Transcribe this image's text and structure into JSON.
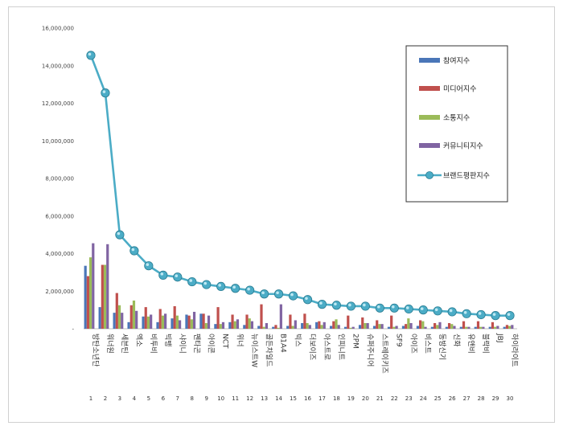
{
  "chart_data": {
    "type": "bar",
    "title": "",
    "xlabel": "",
    "ylabel": "",
    "ylim": [
      0,
      16000000
    ],
    "yticks": [
      "-",
      "2,000,000",
      "4,000,000",
      "6,000,000",
      "8,000,000",
      "10,000,000",
      "12,000,000",
      "14,000,000",
      "16,000,000"
    ],
    "grid": false,
    "legend": "top-right",
    "categories": [
      "방탄소년단",
      "워너원",
      "세븐틴",
      "엑소",
      "비투비",
      "빅뱅",
      "샤이니",
      "펜타곤",
      "아이콘",
      "NCT",
      "위너",
      "뉴이스트W",
      "골든차일드",
      "B1A4",
      "빅스",
      "더보이즈",
      "아스트로",
      "인피니트",
      "2PM",
      "슈퍼주니어",
      "스트레이키즈",
      "SF9",
      "아이즈",
      "비스트",
      "동방신기",
      "신화",
      "유앤비",
      "블락비",
      "JBJ",
      "하이라이트"
    ],
    "ranks": [
      "1",
      "2",
      "3",
      "4",
      "5",
      "6",
      "7",
      "8",
      "9",
      "10",
      "11",
      "12",
      "13",
      "14",
      "15",
      "16",
      "17",
      "18",
      "19",
      "20",
      "21",
      "22",
      "23",
      "24",
      "25",
      "26",
      "27",
      "28",
      "29",
      "30"
    ],
    "series": [
      {
        "name": "참여지수",
        "kind": "bar",
        "color": "#4a76b8",
        "values": [
          3350000,
          1150000,
          850000,
          350000,
          650000,
          350000,
          550000,
          750000,
          800000,
          250000,
          350000,
          200000,
          150000,
          100000,
          150000,
          300000,
          350000,
          150000,
          100000,
          200000,
          150000,
          100000,
          150000,
          150000,
          100000,
          100000,
          100000,
          100000,
          100000,
          100000
        ]
      },
      {
        "name": "미디어지수",
        "kind": "bar",
        "color": "#c0504d",
        "values": [
          2800000,
          3400000,
          1900000,
          1250000,
          1150000,
          1050000,
          1200000,
          700000,
          800000,
          1150000,
          750000,
          750000,
          1300000,
          200000,
          750000,
          800000,
          400000,
          400000,
          700000,
          600000,
          450000,
          700000,
          250000,
          450000,
          300000,
          300000,
          400000,
          400000,
          350000,
          200000
        ]
      },
      {
        "name": "소통지수",
        "kind": "bar",
        "color": "#9bbb59",
        "values": [
          3800000,
          3400000,
          1250000,
          1500000,
          650000,
          700000,
          700000,
          500000,
          300000,
          250000,
          400000,
          550000,
          100000,
          50000,
          150000,
          300000,
          200000,
          500000,
          50000,
          300000,
          250000,
          100000,
          550000,
          400000,
          200000,
          250000,
          100000,
          100000,
          100000,
          150000
        ]
      },
      {
        "name": "커뮤니티지수",
        "kind": "bar",
        "color": "#8064a2",
        "values": [
          4550000,
          4500000,
          850000,
          950000,
          750000,
          800000,
          450000,
          900000,
          700000,
          350000,
          500000,
          400000,
          300000,
          1300000,
          450000,
          200000,
          350000,
          200000,
          100000,
          300000,
          250000,
          150000,
          300000,
          100000,
          350000,
          150000,
          100000,
          100000,
          150000,
          200000
        ]
      },
      {
        "name": "브랜드평판지수",
        "kind": "line",
        "color": "#4bacc6",
        "values": [
          14550000,
          12550000,
          5000000,
          4150000,
          3350000,
          2850000,
          2750000,
          2500000,
          2350000,
          2250000,
          2150000,
          2050000,
          1850000,
          1850000,
          1750000,
          1550000,
          1300000,
          1250000,
          1200000,
          1200000,
          1100000,
          1100000,
          1050000,
          1000000,
          950000,
          900000,
          800000,
          750000,
          700000,
          700000
        ]
      }
    ]
  }
}
